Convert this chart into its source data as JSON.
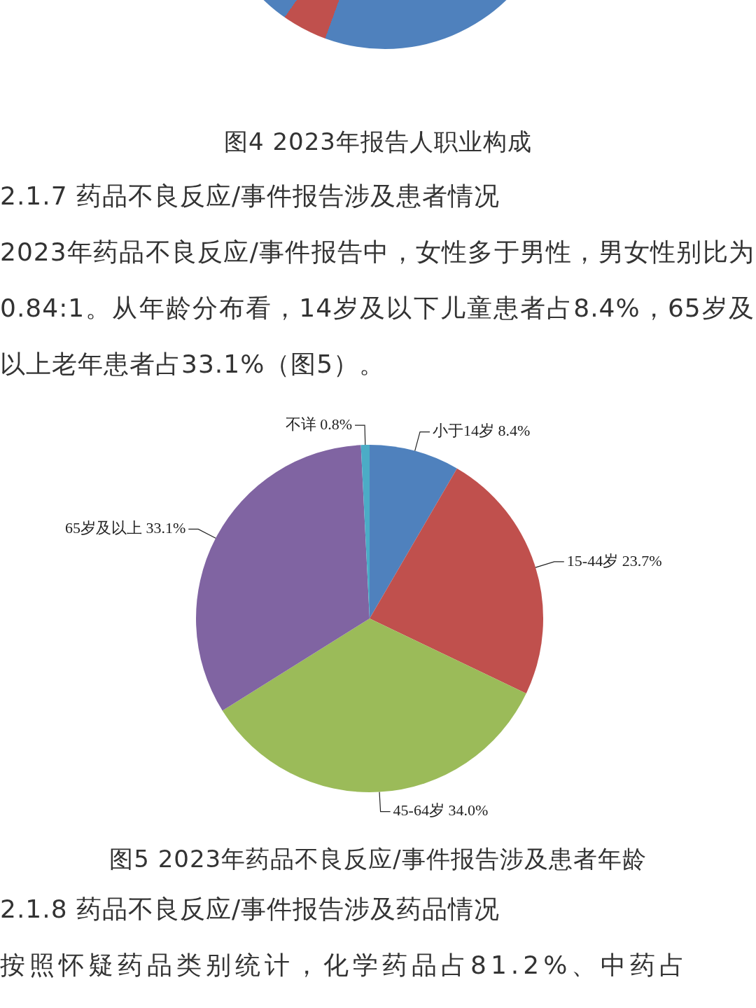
{
  "chart_data": {
    "type": "pie",
    "title": "图5 2023年药品不良反应/事件报告涉及患者年龄",
    "categories": [
      "小于14岁",
      "15-44岁",
      "45-64岁",
      "65岁及以上",
      "不详"
    ],
    "values": [
      8.4,
      23.7,
      34.0,
      33.1,
      0.8
    ],
    "value_labels": [
      "8.4%",
      "23.7%",
      "34.0%",
      "33.1%",
      "0.8%"
    ],
    "colors": [
      "#4f81bd",
      "#c0504d",
      "#9bbb59",
      "#8064a2",
      "#4bacc6"
    ],
    "legend": false,
    "annotations": [
      "图4 2023年报告人职业构成",
      "2.1.7 药品不良反应/事件报告涉及患者情况",
      "2023年药品不良反应/事件报告中，女性多于男性，男女性别比为0.84:1。从年龄分布看，14岁及以下儿童患者占8.4%，65岁及以上老年患者占33.1%（图5）。",
      "2.1.8 药品不良反应/事件报告涉及药品情况",
      "按照怀疑药品类别统计，化学药品占81.2%、中药占"
    ]
  }
}
